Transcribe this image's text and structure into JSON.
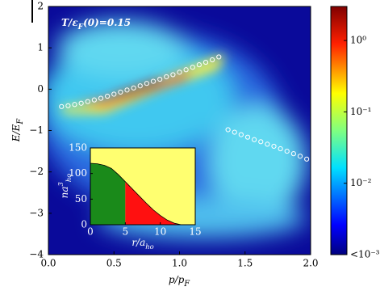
{
  "chart_data": [
    {
      "type": "scatter",
      "annotation": [
        "T/ε",
        "F",
        "(0)=0.15"
      ],
      "xlabel": [
        "p/p",
        "F"
      ],
      "ylabel": [
        "E/E",
        "F"
      ],
      "xlim": [
        0,
        2
      ],
      "ylim": [
        -4,
        2
      ],
      "xticks": [
        {
          "value": 0,
          "label": "0.0"
        },
        {
          "value": 0.5,
          "label": "0.5"
        },
        {
          "value": 1,
          "label": "1.0"
        },
        {
          "value": 1.5,
          "label": "1.5"
        },
        {
          "value": 2,
          "label": "2.0"
        }
      ],
      "yticks": [
        {
          "value": -4,
          "label": "−4"
        },
        {
          "value": -3,
          "label": "−3"
        },
        {
          "value": -2,
          "label": "−2"
        },
        {
          "value": -1,
          "label": "−1"
        },
        0,
        1,
        2
      ],
      "series": [
        {
          "color": "#ffffff",
          "x": [
            0.1,
            0.15,
            0.2,
            0.25,
            0.3,
            0.35,
            0.4,
            0.45,
            0.5,
            0.55,
            0.6,
            0.65,
            0.7,
            0.75,
            0.8,
            0.85,
            0.9,
            0.95,
            1.0,
            1.05,
            1.1,
            1.15,
            1.2,
            1.25,
            1.3
          ],
          "y": [
            -0.42,
            -0.4,
            -0.37,
            -0.34,
            -0.3,
            -0.26,
            -0.22,
            -0.17,
            -0.12,
            -0.07,
            -0.02,
            0.03,
            0.08,
            0.14,
            0.19,
            0.24,
            0.3,
            0.35,
            0.41,
            0.47,
            0.53,
            0.59,
            0.65,
            0.71,
            0.78
          ]
        },
        {
          "color": "#ffffff",
          "x": [
            1.37,
            1.42,
            1.47,
            1.52,
            1.57,
            1.62,
            1.67,
            1.72,
            1.77,
            1.82,
            1.87,
            1.92,
            1.97
          ],
          "y": [
            -0.98,
            -1.04,
            -1.1,
            -1.16,
            -1.22,
            -1.27,
            -1.33,
            -1.38,
            -1.44,
            -1.5,
            -1.56,
            -1.62,
            -1.69
          ]
        }
      ]
    },
    {
      "type": "area",
      "xlabel": [
        "r/a",
        "ho"
      ],
      "ylabel": [
        "na",
        "3",
        "ho"
      ],
      "xlim": [
        0,
        15
      ],
      "ylim": [
        0,
        150
      ],
      "xticks": [
        0,
        5,
        10,
        15
      ],
      "yticks": [
        0,
        50,
        100,
        150
      ],
      "x": [
        0,
        1,
        2,
        3,
        4,
        5,
        6,
        7,
        8,
        9,
        10,
        11,
        12,
        13
      ],
      "values": [
        120,
        119,
        116,
        110,
        98,
        84,
        70,
        56,
        42,
        29,
        18,
        9,
        3,
        0
      ],
      "region_split": 5,
      "colors": [
        "#1a8a1a",
        "#ff1010",
        "#ffff70"
      ]
    },
    {
      "type": "colorbar",
      "log": true,
      "lim": [
        0.001,
        3
      ],
      "ticks": [
        {
          "value": 1,
          "label": "10⁰"
        },
        {
          "value": 0.1,
          "label": "10⁻¹"
        },
        {
          "value": 0.01,
          "label": "10⁻²"
        },
        {
          "value": 0.001,
          "label": "<10⁻³"
        }
      ]
    }
  ]
}
